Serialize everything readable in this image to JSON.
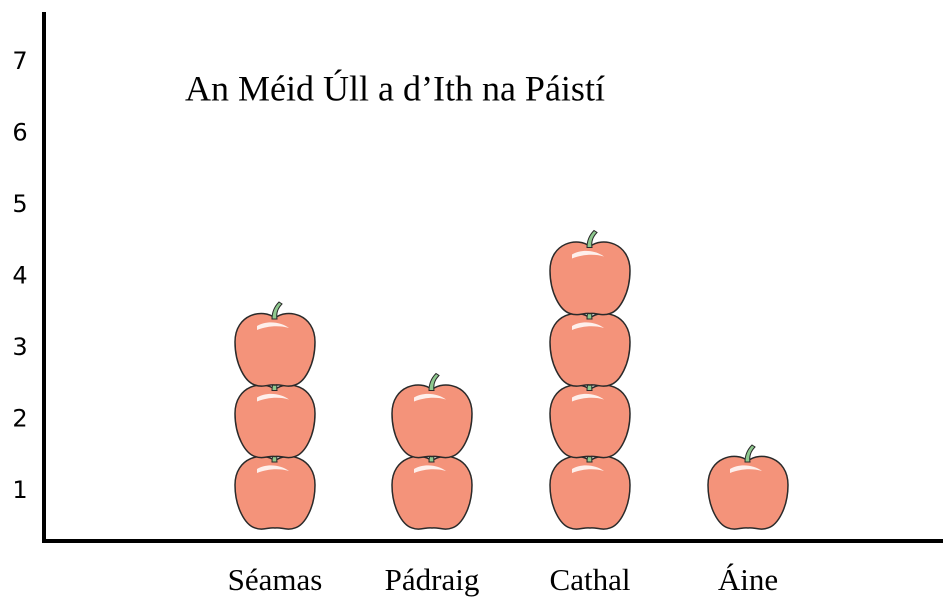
{
  "chart_data": {
    "type": "pictograph",
    "title": "An Méid Úll a d’Ith na Páistí",
    "categories": [
      "Séamas",
      "Pádraig",
      "Cathal",
      "Áine"
    ],
    "values": [
      3,
      2,
      4,
      1
    ],
    "color": "#f4937a",
    "ylim": [
      0.3,
      7.7
    ],
    "yticks": [
      1,
      2,
      3,
      4,
      5,
      6,
      7
    ]
  }
}
